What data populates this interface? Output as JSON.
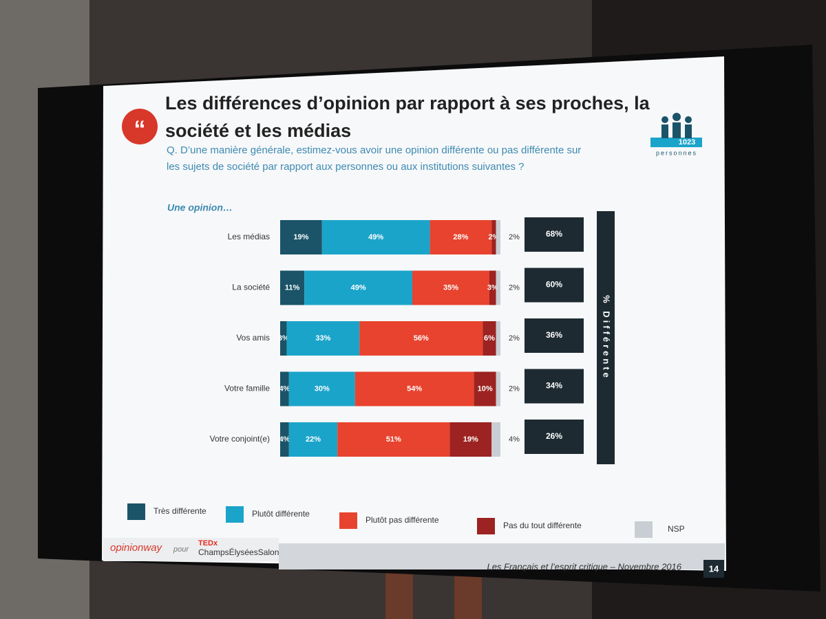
{
  "chart_data": {
    "type": "stacked-barh",
    "title_lines": [
      "Les différences d’opinion par rapport à ses proches, la",
      "société et les médias"
    ],
    "subtitle_lines": [
      "Q. D’une manière générale, estimez-vous avoir une opinion différente ou pas différente sur",
      "les sujets de société par rapport aux personnes ou aux institutions suivantes ?"
    ],
    "group_label": "Une opinion…",
    "sample": {
      "count": "1023",
      "unit": "personnes"
    },
    "categories": [
      "Les médias",
      "La société",
      "Vos amis",
      "Votre famille",
      "Votre conjoint(e)"
    ],
    "series": [
      {
        "name": "Très différente",
        "color": "#1b5468",
        "values": [
          19,
          11,
          3,
          4,
          4
        ],
        "value_labels": [
          "19%",
          "11%",
          "3%",
          "4%",
          "4%"
        ]
      },
      {
        "name": "Plutôt différente",
        "color": "#1ba4ca",
        "values": [
          49,
          49,
          33,
          30,
          22
        ],
        "value_labels": [
          "49%",
          "49%",
          "33%",
          "30%",
          "22%"
        ]
      },
      {
        "name": "Plutôt pas différente",
        "color": "#e8432e",
        "values": [
          28,
          35,
          56,
          54,
          51
        ],
        "value_labels": [
          "28%",
          "35%",
          "56%",
          "54%",
          "51%"
        ]
      },
      {
        "name": "Pas du tout différente",
        "color": "#9c2321",
        "values": [
          2,
          3,
          6,
          10,
          19
        ],
        "value_labels": [
          "2%",
          "3%",
          "6%",
          "10%",
          "19%"
        ]
      },
      {
        "name": "NSP",
        "color": "#c9ced4",
        "values": [
          2,
          2,
          2,
          2,
          4
        ],
        "value_labels": [
          "2%",
          "2%",
          "2%",
          "2%",
          "4%"
        ]
      }
    ],
    "totals": {
      "name": "% Différente",
      "color": "#1d2a31",
      "values": [
        68,
        60,
        36,
        34,
        26
      ],
      "value_labels": [
        "68%",
        "60%",
        "36%",
        "34%",
        "26%"
      ]
    },
    "footer": {
      "brand": "opinionway",
      "for": "pour",
      "partner_top": "TEDx",
      "partner": "ChampsÉlyséesSalon",
      "caption": "Les Français et l’esprit critique – Novembre 2016",
      "page": "14"
    }
  }
}
